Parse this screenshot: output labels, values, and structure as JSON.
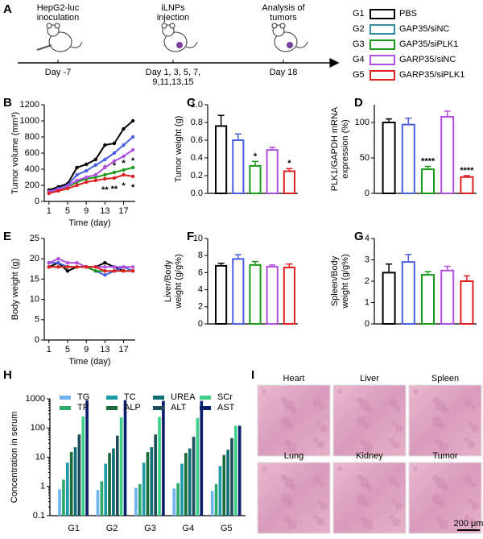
{
  "panel_A": {
    "label": "A",
    "steps": [
      {
        "event": [
          "HepG2-luc",
          "inoculation"
        ],
        "day": [
          "Day -7"
        ]
      },
      {
        "event": [
          "iLNPs",
          "injection"
        ],
        "day": [
          "Day 1, 3, 5, 7,",
          "9,11,13,15"
        ]
      },
      {
        "event": [
          "Analysis of",
          "tumors"
        ],
        "day": [
          "Day 18"
        ]
      }
    ],
    "legend": [
      {
        "id": "G1",
        "name": "PBS",
        "id_color": "#000000",
        "box_color": "#000000",
        "name_color": "#000000"
      },
      {
        "id": "G2",
        "name": "GAP35/siNC",
        "id_color": "#4a5ee0",
        "box_color": "#2f8ea0",
        "name_color": "#2f8ea0"
      },
      {
        "id": "G3",
        "name": "GAP35/siPLK1",
        "id_color": "#1a9a1a",
        "box_color": "#1a9a1a",
        "name_color": "#1a9a1a"
      },
      {
        "id": "G4",
        "name": "GARP35/siNC",
        "id_color": "#b04fe0",
        "box_color": "#b04fe0",
        "name_color": "#b04fe0"
      },
      {
        "id": "G5",
        "name": "GARP35/siPLK1",
        "id_color": "#e02020",
        "box_color": "#e02020",
        "name_color": "#e02020"
      }
    ]
  },
  "chart_data": [
    {
      "type": "line",
      "panel": "B",
      "ylabel": [
        "Tumor volume (mm³)"
      ],
      "xlabel": "Time (day)",
      "x": [
        1,
        3,
        5,
        7,
        9,
        11,
        13,
        15,
        17,
        19
      ],
      "xlim": [
        0,
        19.5
      ],
      "xticks": [
        1,
        5,
        9,
        13,
        17
      ],
      "ylim": [
        0,
        1200
      ],
      "yticks": [
        0,
        200,
        400,
        600,
        800,
        1000,
        1200
      ],
      "series": [
        {
          "color": "#000000",
          "values": [
            140,
            180,
            220,
            420,
            460,
            520,
            700,
            720,
            900,
            1000
          ],
          "significance": [
            null,
            null,
            null,
            null,
            null,
            null,
            null,
            null,
            null,
            null
          ]
        },
        {
          "color": "#4a5ee0",
          "values": [
            120,
            160,
            200,
            330,
            380,
            450,
            520,
            600,
            700,
            800
          ],
          "significance": [
            null,
            null,
            null,
            null,
            null,
            null,
            null,
            null,
            null,
            null
          ]
        },
        {
          "color": "#1a9a1a",
          "values": [
            110,
            140,
            180,
            240,
            280,
            300,
            330,
            360,
            390,
            420
          ],
          "significance": [
            null,
            null,
            null,
            null,
            null,
            null,
            "*",
            "*",
            "*",
            "*"
          ]
        },
        {
          "color": "#b04fe0",
          "values": [
            120,
            150,
            190,
            260,
            300,
            330,
            420,
            500,
            560,
            640
          ],
          "significance": [
            null,
            null,
            null,
            null,
            null,
            null,
            null,
            null,
            null,
            null
          ]
        },
        {
          "color": "#e02020",
          "values": [
            100,
            130,
            160,
            200,
            240,
            260,
            280,
            290,
            330,
            310
          ],
          "significance": [
            null,
            null,
            null,
            null,
            null,
            null,
            "**",
            "**",
            "*",
            "*"
          ]
        }
      ]
    },
    {
      "type": "bar",
      "panel": "C",
      "ylabel": [
        "Tumor weight (g)"
      ],
      "ylim": [
        0,
        1
      ],
      "yticks": [
        {
          "value": 0,
          "label": "0.0"
        },
        0.2,
        0.4,
        0.6,
        0.8,
        {
          "value": 1,
          "label": "1.0"
        }
      ],
      "values": [
        0.76,
        0.6,
        0.31,
        0.49,
        0.25
      ],
      "errors": [
        0.12,
        0.07,
        0.05,
        0.03,
        0.03
      ],
      "colors": [
        "#000000",
        "#4a5ee0",
        "#1a9a1a",
        "#b04fe0",
        "#e02020"
      ],
      "significance": [
        null,
        null,
        "*",
        null,
        "*"
      ]
    },
    {
      "type": "bar",
      "panel": "D",
      "ylabel": [
        "PLK1/GAPDH mRNA",
        "expression (%)"
      ],
      "ylim": [
        0,
        125
      ],
      "yticks": [
        0,
        50,
        100
      ],
      "values": [
        100,
        97,
        34,
        108,
        23
      ],
      "errors": [
        5,
        9,
        4,
        8,
        2
      ],
      "colors": [
        "#000000",
        "#4a5ee0",
        "#1a9a1a",
        "#b04fe0",
        "#e02020"
      ],
      "significance": [
        null,
        null,
        "****",
        null,
        "****"
      ]
    },
    {
      "type": "line",
      "panel": "E",
      "ylabel": [
        "Body weight (g)"
      ],
      "xlabel": "Time (day)",
      "x": [
        1,
        3,
        5,
        7,
        9,
        11,
        13,
        15,
        17,
        19
      ],
      "xlim": [
        0,
        19.5
      ],
      "xticks": [
        1,
        5,
        9,
        13,
        17
      ],
      "ylim": [
        0,
        25
      ],
      "yticks": [
        0,
        5,
        10,
        15,
        20,
        25
      ],
      "series": [
        {
          "color": "#000000",
          "values": [
            18,
            19,
            17,
            18,
            18,
            18,
            19,
            18,
            17,
            17
          ],
          "significance": [
            null,
            null,
            null,
            null,
            null,
            null,
            null,
            null,
            null,
            null
          ]
        },
        {
          "color": "#4a5ee0",
          "values": [
            19,
            19,
            18,
            18,
            18,
            17,
            16,
            17,
            18,
            17
          ],
          "significance": [
            null,
            null,
            null,
            null,
            null,
            null,
            null,
            null,
            null,
            null
          ]
        },
        {
          "color": "#1a9a1a",
          "values": [
            18,
            18,
            18,
            18,
            18,
            17,
            17,
            17,
            17,
            17
          ],
          "significance": [
            null,
            null,
            null,
            null,
            null,
            null,
            null,
            null,
            null,
            null
          ]
        },
        {
          "color": "#b04fe0",
          "values": [
            19,
            20,
            19,
            19,
            18,
            18,
            18,
            18,
            18,
            18
          ],
          "significance": [
            null,
            null,
            null,
            null,
            null,
            null,
            null,
            null,
            null,
            null
          ]
        },
        {
          "color": "#e02020",
          "values": [
            18,
            18,
            18,
            18,
            18,
            18,
            17,
            17,
            17,
            17
          ],
          "significance": [
            null,
            null,
            null,
            null,
            null,
            null,
            null,
            null,
            null,
            null
          ]
        }
      ]
    },
    {
      "type": "bar",
      "panel": "F",
      "ylabel": [
        "Liver/Body",
        "weight (g/g%)"
      ],
      "ylim": [
        0,
        10
      ],
      "yticks": [
        0,
        2,
        4,
        6,
        8,
        10
      ],
      "values": [
        6.8,
        7.6,
        6.9,
        6.7,
        6.6
      ],
      "errors": [
        0.3,
        0.5,
        0.4,
        0.2,
        0.4
      ],
      "colors": [
        "#000000",
        "#4a5ee0",
        "#1a9a1a",
        "#b04fe0",
        "#e02020"
      ],
      "significance": [
        null,
        null,
        null,
        null,
        null
      ]
    },
    {
      "type": "bar",
      "panel": "G",
      "ylabel": [
        "Spleen/Body",
        "weight (g/g%)"
      ],
      "ylim": [
        0,
        4
      ],
      "yticks": [
        0,
        1,
        2,
        3,
        4
      ],
      "values": [
        2.4,
        2.9,
        2.3,
        2.5,
        2.0
      ],
      "errors": [
        0.4,
        0.35,
        0.15,
        0.2,
        0.25
      ],
      "colors": [
        "#000000",
        "#4a5ee0",
        "#1a9a1a",
        "#b04fe0",
        "#e02020"
      ],
      "significance": [
        null,
        null,
        null,
        null,
        null
      ]
    },
    {
      "type": "grouped_bar",
      "panel": "H",
      "ylabel": [
        "Concentration in serum"
      ],
      "log": true,
      "categories": [
        "G1",
        "G2",
        "G3",
        "G4",
        "G5"
      ],
      "category_colors": [
        "#000000",
        "#4a5ee0",
        "#1a9a1a",
        "#b04fe0",
        "#e02020"
      ],
      "ylim": [
        0.1,
        1000
      ],
      "yticks": [
        0.1,
        1,
        10,
        100,
        1000
      ],
      "series": [
        {
          "name": "TG",
          "color": "#6fb3f0",
          "values": [
            0.8,
            0.75,
            0.9,
            0.85,
            0.7
          ]
        },
        {
          "name": "TP",
          "color": "#2ea86b",
          "values": [
            1.7,
            1.5,
            1.2,
            1.3,
            1.2
          ]
        },
        {
          "name": "TC",
          "color": "#1e9aa8",
          "values": [
            6.5,
            6,
            6.5,
            6,
            5
          ]
        },
        {
          "name": "ALP",
          "color": "#1b6b3a",
          "values": [
            15,
            14,
            15,
            14,
            12
          ]
        },
        {
          "name": "UREA",
          "color": "#0e6f76",
          "values": [
            22,
            20,
            22,
            20,
            18
          ]
        },
        {
          "name": "ALT",
          "color": "#1f4e5a",
          "values": [
            60,
            55,
            60,
            50,
            45
          ]
        },
        {
          "name": "SCr",
          "color": "#3ecf8a",
          "values": [
            250,
            230,
            240,
            220,
            120
          ]
        },
        {
          "name": "AST",
          "color": "#0a1f6b",
          "values": [
            900,
            900,
            850,
            850,
            120
          ]
        }
      ]
    }
  ],
  "panel_I": {
    "label": "I",
    "tissues": [
      "Heart",
      "Liver",
      "Spleen",
      "Lung",
      "Kidney",
      "Tumor"
    ],
    "scale_bar": "200 μm"
  }
}
